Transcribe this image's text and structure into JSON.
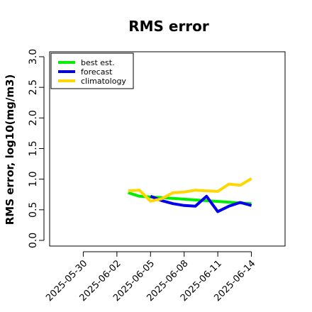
{
  "chart_data": {
    "type": "line",
    "title": "RMS error",
    "ylabel": "RMS error, log10(mg/m3)",
    "xlabel": "",
    "ylim": [
      0,
      3.0
    ],
    "yticks": [
      0.0,
      0.5,
      1.0,
      1.5,
      2.0,
      2.5,
      3.0
    ],
    "ytick_labels": [
      "0.0",
      "0.5",
      "1.0",
      "1.5",
      "2.0",
      "2.5",
      "3.0"
    ],
    "xlim": [
      "2025-05-27",
      "2025-06-17"
    ],
    "xticks": [
      "2025-05-30",
      "2025-06-02",
      "2025-06-05",
      "2025-06-08",
      "2025-06-11",
      "2025-06-14"
    ],
    "highlight_xtick": "2025-06-05",
    "highlight_color": "#228B22",
    "grid": false,
    "legend_position": "top-left",
    "series": [
      {
        "name": "best est.",
        "color": "#00EE00",
        "points": [
          {
            "x": "2025-06-03",
            "y": 0.78
          },
          {
            "x": "2025-06-04",
            "y": 0.72
          },
          {
            "x": "2025-06-05",
            "y": 0.71
          },
          {
            "x": "2025-06-14",
            "y": 0.6
          }
        ]
      },
      {
        "name": "forecast",
        "color": "#0000EE",
        "points": [
          {
            "x": "2025-06-05",
            "y": 0.72
          },
          {
            "x": "2025-06-06",
            "y": 0.65
          },
          {
            "x": "2025-06-07",
            "y": 0.6
          },
          {
            "x": "2025-06-08",
            "y": 0.57
          },
          {
            "x": "2025-06-09",
            "y": 0.56
          },
          {
            "x": "2025-06-10",
            "y": 0.72
          },
          {
            "x": "2025-06-11",
            "y": 0.47
          },
          {
            "x": "2025-06-12",
            "y": 0.56
          },
          {
            "x": "2025-06-13",
            "y": 0.62
          },
          {
            "x": "2025-06-14",
            "y": 0.57
          }
        ]
      },
      {
        "name": "climatology",
        "color": "#FFD700",
        "points": [
          {
            "x": "2025-06-03",
            "y": 0.81
          },
          {
            "x": "2025-06-04",
            "y": 0.82
          },
          {
            "x": "2025-06-05",
            "y": 0.64
          },
          {
            "x": "2025-06-06",
            "y": 0.68
          },
          {
            "x": "2025-06-07",
            "y": 0.78
          },
          {
            "x": "2025-06-08",
            "y": 0.79
          },
          {
            "x": "2025-06-09",
            "y": 0.82
          },
          {
            "x": "2025-06-10",
            "y": 0.81
          },
          {
            "x": "2025-06-11",
            "y": 0.8
          },
          {
            "x": "2025-06-12",
            "y": 0.92
          },
          {
            "x": "2025-06-13",
            "y": 0.9
          },
          {
            "x": "2025-06-14",
            "y": 1.01
          }
        ]
      }
    ]
  }
}
